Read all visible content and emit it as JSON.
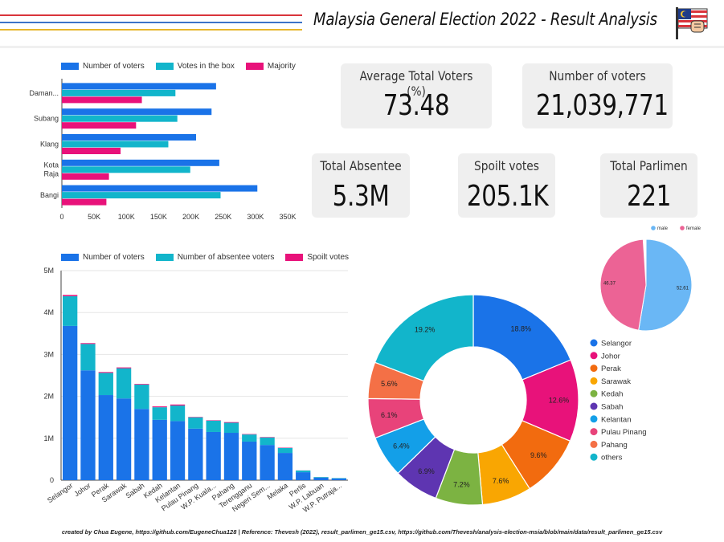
{
  "header": {
    "title": "Malaysia General Election 2022 - Result Analysis",
    "icon": "malaysia-flag-fist-icon",
    "line_colors": [
      "#d9343b",
      "#3b73c9",
      "#e6b62c"
    ]
  },
  "cards": {
    "avg_voters": {
      "label": "Average Total Voters (%)",
      "value": "73.48"
    },
    "num_voters": {
      "label": "Number of voters",
      "value": "21,039,771"
    },
    "absentee": {
      "label": "Total Absentee",
      "value": "5.3M"
    },
    "spoilt": {
      "label": "Spoilt votes",
      "value": "205.1K"
    },
    "parlimen": {
      "label": "Total Parlimen",
      "value": "221"
    }
  },
  "footer": "created by Chua Eugene, https://github.com/EugeneChua128 | Reference: Thevesh (2022), result_parlimen_ge15.csv, https://github.com/Thevesh/analysis-election-msia/blob/main/data/result_parlimen_ge15.csv",
  "chart_data": [
    {
      "type": "bar",
      "orientation": "horizontal",
      "categories": [
        "Daman...",
        "Subang",
        "Klang",
        "Kota Raja",
        "Bangi"
      ],
      "series": [
        {
          "name": "Number of voters",
          "color": "#1a73e8",
          "values": [
            239000,
            232000,
            208000,
            244000,
            303000
          ]
        },
        {
          "name": "Votes in the box",
          "color": "#12b5cb",
          "values": [
            176000,
            179000,
            165000,
            199000,
            246000
          ]
        },
        {
          "name": "Majority",
          "color": "#e8127a",
          "values": [
            124000,
            115000,
            91000,
            73000,
            69000
          ]
        }
      ],
      "xticks": [
        "0",
        "50K",
        "100K",
        "150K",
        "200K",
        "250K",
        "300K",
        "350K"
      ],
      "xlim": [
        0,
        350000
      ],
      "legend": "top",
      "grid": false
    },
    {
      "type": "bar",
      "stacked": true,
      "categories": [
        "Selangor",
        "Johor",
        "Perak",
        "Sarawak",
        "Sabah",
        "Kedah",
        "Kelantan",
        "Pulau Pinang",
        "W.P. Kuala...",
        "Pahang",
        "Terengganu",
        "Negeri Sem...",
        "Melaka",
        "Perlis",
        "W.P. Labuan",
        "W.P. Putraja..."
      ],
      "series": [
        {
          "name": "Number of voters",
          "color": "#1a73e8",
          "values": [
            3680000,
            2620000,
            2030000,
            1950000,
            1700000,
            1440000,
            1410000,
            1230000,
            1150000,
            1130000,
            920000,
            840000,
            650000,
            190000,
            60000,
            40000
          ]
        },
        {
          "name": "Number of absentee voters",
          "color": "#12b5cb",
          "values": [
            710000,
            630000,
            530000,
            720000,
            580000,
            300000,
            370000,
            270000,
            270000,
            240000,
            170000,
            180000,
            120000,
            40000,
            15000,
            10000
          ]
        },
        {
          "name": "Spoilt votes",
          "color": "#e8127a",
          "values": [
            30000,
            20000,
            20000,
            20000,
            15000,
            20000,
            25000,
            10000,
            10000,
            15000,
            10000,
            10000,
            8000,
            2000,
            1000,
            500
          ]
        }
      ],
      "yticks": [
        "0",
        "1M",
        "2M",
        "3M",
        "4M",
        "5M"
      ],
      "ylim": [
        0,
        5000000
      ],
      "legend": "top",
      "grid": true
    },
    {
      "type": "pie",
      "donut": true,
      "labels": [
        "Selangor",
        "Johor",
        "Perak",
        "Sarawak",
        "Kedah",
        "Sabah",
        "Kelantan",
        "Pulau Pinang",
        "Pahang",
        "others"
      ],
      "values": [
        18.8,
        12.6,
        9.6,
        7.6,
        7.2,
        6.9,
        6.4,
        6.1,
        5.6,
        19.2
      ],
      "value_labels": [
        "18.8%",
        "12.6%",
        "9.6%",
        "7.6%",
        "7.2%",
        "6.9%",
        "6.4%",
        "6.1%",
        "5.6%",
        "19.2%"
      ],
      "colors": [
        "#1a73e8",
        "#e8127a",
        "#f26b0f",
        "#f9a602",
        "#7cb342",
        "#5e35b1",
        "#139fe8",
        "#e8437a",
        "#f47046",
        "#12b5cb"
      ],
      "legend": "right"
    },
    {
      "type": "pie",
      "labels": [
        "male",
        "female"
      ],
      "values": [
        52.61,
        46.37
      ],
      "value_labels": [
        "52.61",
        "46.37"
      ],
      "colors": [
        "#6ab7f5",
        "#ec6395"
      ],
      "legend": "top"
    }
  ]
}
